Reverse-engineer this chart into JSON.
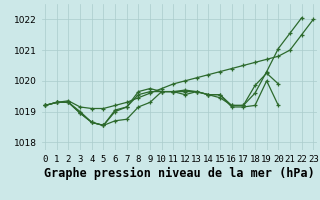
{
  "title": "Graphe pression niveau de la mer (hPa)",
  "hours": [
    0,
    1,
    2,
    3,
    4,
    5,
    6,
    7,
    8,
    9,
    10,
    11,
    12,
    13,
    14,
    15,
    16,
    17,
    18,
    19,
    20,
    21,
    22,
    23
  ],
  "series": [
    [
      1019.2,
      1019.3,
      1019.3,
      1018.95,
      1018.65,
      1018.55,
      1018.7,
      1018.75,
      1019.15,
      1019.3,
      1019.65,
      1019.65,
      1019.65,
      1019.65,
      1019.55,
      1019.55,
      1019.15,
      1019.15,
      1019.2,
      1020.0,
      1019.2,
      null,
      null,
      null
    ],
    [
      1019.2,
      1019.3,
      1019.3,
      1018.95,
      1018.65,
      1018.55,
      1019.0,
      1019.15,
      1019.55,
      1019.65,
      1019.65,
      1019.65,
      1019.55,
      1019.65,
      1019.55,
      1019.45,
      1019.2,
      1019.2,
      1019.85,
      1020.25,
      1019.9,
      null,
      null,
      null
    ],
    [
      1019.2,
      1019.3,
      1019.3,
      1019.0,
      1018.65,
      1018.55,
      1019.05,
      1019.15,
      1019.65,
      1019.75,
      1019.65,
      1019.65,
      1019.7,
      1019.65,
      1019.55,
      1019.55,
      1019.2,
      1019.2,
      1019.6,
      1020.3,
      1021.05,
      1021.55,
      1022.05,
      null
    ],
    [
      1019.2,
      1019.3,
      1019.35,
      1019.15,
      1019.1,
      1019.1,
      1019.2,
      1019.3,
      1019.45,
      1019.6,
      1019.75,
      1019.9,
      1020.0,
      1020.1,
      1020.2,
      1020.3,
      1020.4,
      1020.5,
      1020.6,
      1020.7,
      1020.8,
      1021.0,
      1021.5,
      1022.0
    ]
  ],
  "line_color": "#2d6a2d",
  "marker": "+",
  "bg_color": "#cce8e8",
  "grid_color": "#aacccc",
  "ylim": [
    1017.75,
    1022.5
  ],
  "yticks": [
    1018,
    1019,
    1020,
    1021,
    1022
  ],
  "xlim": [
    -0.3,
    23.3
  ],
  "title_fontsize": 8.5,
  "tick_fontsize": 6.5,
  "line_width": 0.9,
  "marker_size": 3.5
}
